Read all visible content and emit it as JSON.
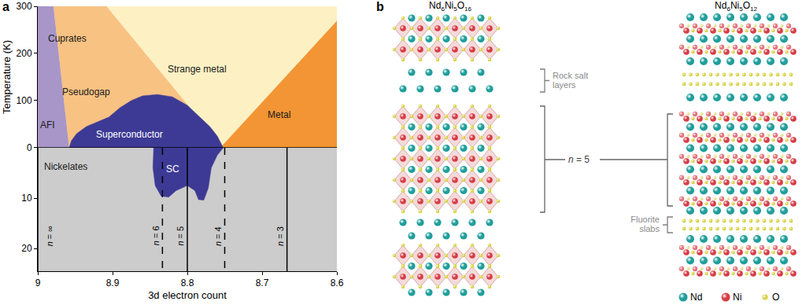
{
  "chart_data": {
    "type": "area",
    "panel_label": "a",
    "x_label": "3d electron count",
    "y_label": "Temperature (K)",
    "xlim": [
      9,
      8.6
    ],
    "xticks": [
      9,
      8.9,
      8.8,
      8.7,
      8.6
    ],
    "ylim": [
      0,
      300
    ],
    "yticks": [
      0,
      100,
      200,
      300
    ],
    "y2lim": [
      24.5,
      0
    ],
    "y2ticks": [
      10,
      20
    ],
    "grid": false,
    "regions": [
      {
        "color": "#cccccc",
        "axis": "y2",
        "x": [
          9,
          8.6,
          8.6,
          9
        ],
        "y": [
          0,
          0,
          24.5,
          24.5
        ]
      },
      {
        "color": "#a896c9",
        "axis": "y",
        "x": [
          9,
          9,
          8.979,
          8.958
        ],
        "y": [
          0,
          300,
          300,
          0
        ]
      },
      {
        "color": "#f8c283",
        "axis": "y",
        "x": [
          8.979,
          8.908,
          8.752,
          8.958
        ],
        "y": [
          300,
          300,
          0,
          0
        ]
      },
      {
        "color": "#fdf1c4",
        "axis": "y",
        "x": [
          8.908,
          8.6,
          8.6,
          8.756,
          8.752
        ],
        "y": [
          300,
          300,
          269,
          0,
          0
        ]
      },
      {
        "color": "#f39534",
        "axis": "y",
        "x": [
          8.6,
          8.6,
          8.756
        ],
        "y": [
          269,
          0,
          0
        ]
      },
      {
        "color": "#3d3a95",
        "axis": "y",
        "x": [
          8.958,
          8.955,
          8.948,
          8.935,
          8.92,
          8.905,
          8.89,
          8.875,
          8.86,
          8.84,
          8.82,
          8.8,
          8.79,
          8.78,
          8.77,
          8.76,
          8.752
        ],
        "y": [
          0,
          15,
          30,
          45,
          55,
          65,
          85,
          100,
          110,
          113,
          108,
          90,
          75,
          60,
          45,
          25,
          0
        ]
      },
      {
        "color": "#3d3a95",
        "axis": "y2",
        "x": [
          8.845,
          8.846,
          8.843,
          8.835,
          8.825,
          8.815,
          8.8,
          8.79,
          8.785,
          8.778,
          8.772,
          8.768,
          8.76,
          8.752
        ],
        "y": [
          0,
          4,
          7.5,
          9.6,
          9.8,
          8.5,
          7.5,
          8.5,
          10.3,
          10.4,
          8,
          4,
          1.5,
          0
        ]
      }
    ],
    "labels": [
      {
        "text": "Cuprates",
        "x": 8.961,
        "y": 232,
        "axis": "y",
        "color": "#1a1a1a"
      },
      {
        "text": "Pseudogap",
        "x": 8.935,
        "y": 118,
        "axis": "y",
        "color": "#1a1a1a"
      },
      {
        "text": "Strange metal",
        "x": 8.787,
        "y": 167,
        "axis": "y",
        "color": "#1a1a1a"
      },
      {
        "text": "AFI",
        "x": 8.987,
        "y": 49,
        "axis": "y",
        "color": "#1a1a1a"
      },
      {
        "text": "Superconductor",
        "x": 8.877,
        "y": 29,
        "axis": "y",
        "color": "#ffffff"
      },
      {
        "text": "Metal",
        "x": 8.677,
        "y": 70,
        "axis": "y",
        "color": "#1a1a1a"
      },
      {
        "text": "Nickelates",
        "x": 8.963,
        "y": 3.8,
        "axis": "y2",
        "color": "#1a1a1a"
      },
      {
        "text": "SC",
        "x": 8.819,
        "y": 4.2,
        "axis": "y2",
        "color": "#ffffff"
      }
    ],
    "electron_lines": [
      {
        "label": "n = ∞",
        "x": 9,
        "line_style": "solid",
        "label_x": 8.984,
        "label_y": 17.5
      },
      {
        "label": "n = 6",
        "x": 8.8333,
        "line_style": "dash",
        "label_x": 8.842,
        "label_y": 17.5
      },
      {
        "label": "n = 5",
        "x": 8.8,
        "line_style": "solid",
        "label_x": 8.809,
        "label_y": 17.5
      },
      {
        "label": "n = 4",
        "x": 8.75,
        "line_style": "dash",
        "label_x": 8.759,
        "label_y": 17.5
      },
      {
        "label": "n = 3",
        "x": 8.6667,
        "line_style": "solid",
        "label_x": 8.676,
        "label_y": 17.5
      }
    ]
  },
  "diagram": {
    "panel_label": "b",
    "structures": [
      {
        "formula": "Nd6Ni5O16"
      },
      {
        "formula": "Nd6Ni5O12"
      }
    ],
    "annotations": {
      "rock_salt": [
        "Rock salt",
        "layers"
      ],
      "block": "n = 5",
      "fluorite": [
        "Fluorite",
        "slabs"
      ]
    },
    "legend": [
      {
        "label": "Nd",
        "color": "#1f9e9b"
      },
      {
        "label": "Ni",
        "color": "#d63c46"
      },
      {
        "label": "O",
        "color": "#d8d24b"
      }
    ]
  }
}
